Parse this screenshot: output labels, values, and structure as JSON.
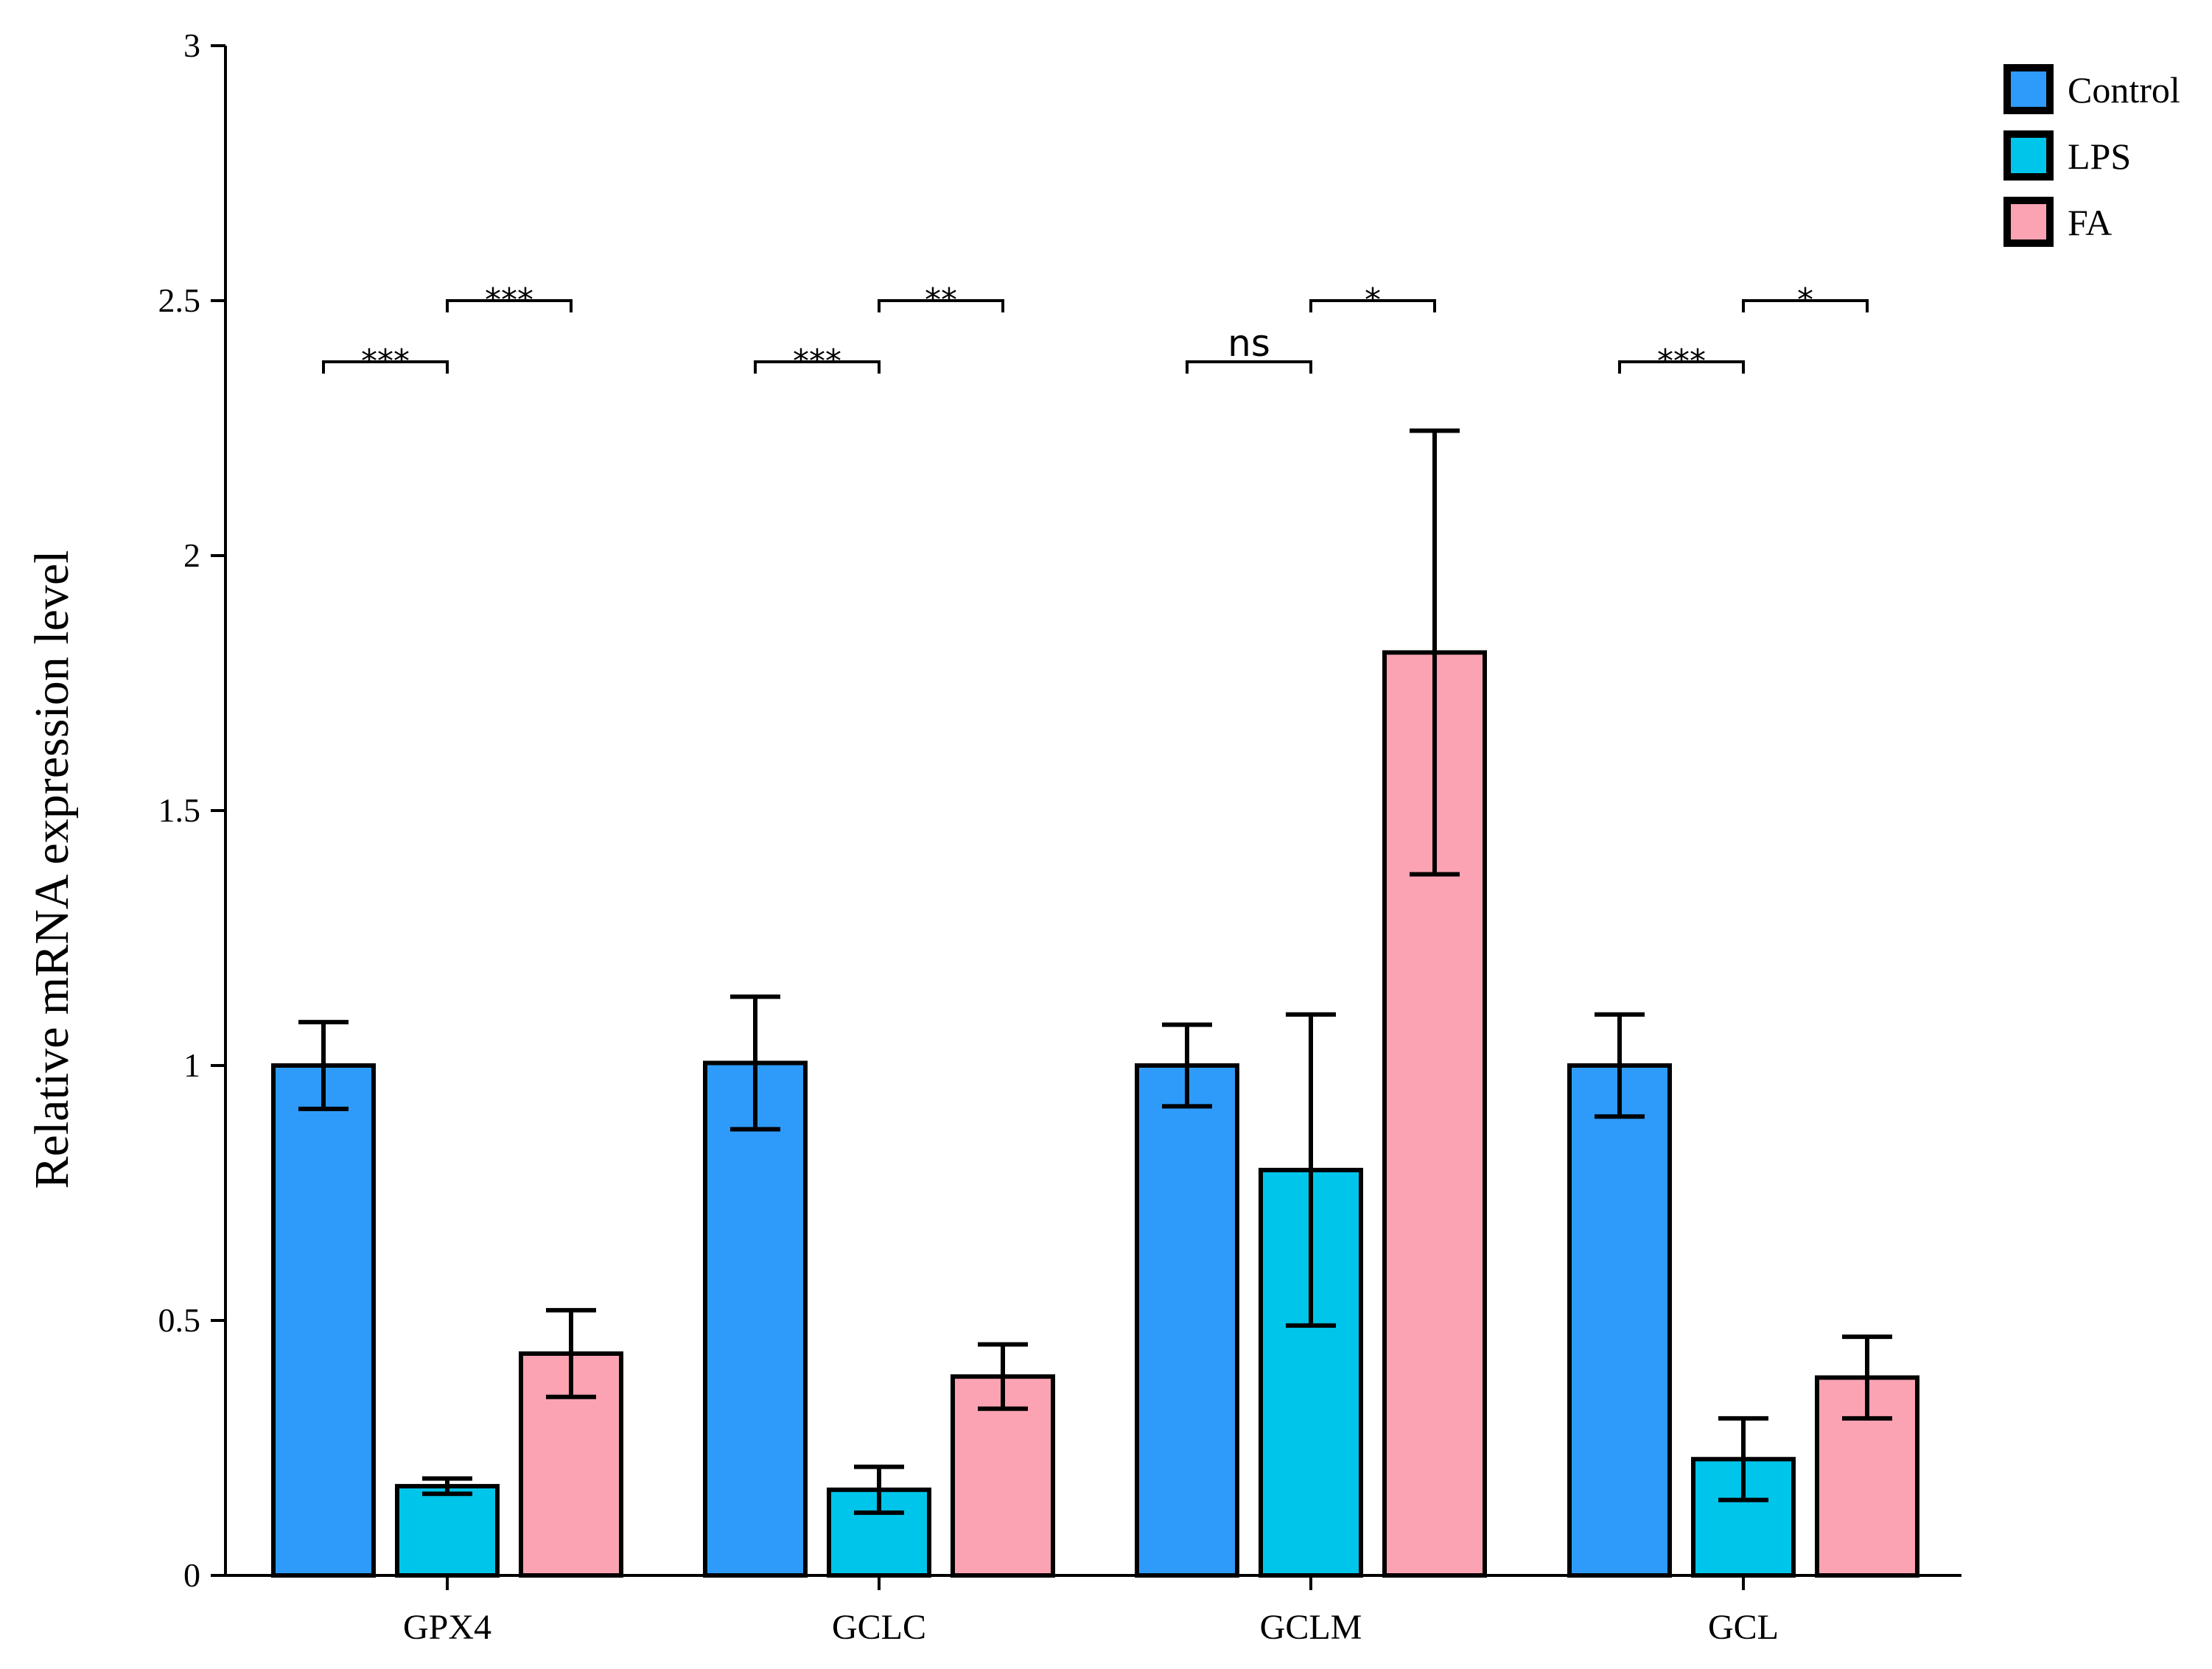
{
  "chart_data": {
    "type": "bar",
    "title": "",
    "xlabel": "",
    "ylabel": "Relative mRNA expression level",
    "ylim": [
      0,
      3
    ],
    "yticks": [
      0,
      0.5,
      1,
      1.5,
      2,
      2.5,
      3
    ],
    "ytick_labels": [
      "0",
      "0.5",
      "1",
      "1.5",
      "2",
      "2.5",
      "3"
    ],
    "categories": [
      "GPX4",
      "GCLC",
      "GCLM",
      "GCL"
    ],
    "series": [
      {
        "name": "Control",
        "color": "#2E9BFA",
        "values": [
          1.0,
          1.005,
          1.0,
          1.0
        ],
        "errors": [
          0.085,
          0.13,
          0.08,
          0.1
        ]
      },
      {
        "name": "LPS",
        "color": "#00C5EA",
        "values": [
          0.175,
          0.168,
          0.795,
          0.228
        ],
        "errors": [
          0.015,
          0.045,
          0.305,
          0.08
        ]
      },
      {
        "name": "FA",
        "color": "#FCA3B3",
        "values": [
          0.435,
          0.39,
          1.81,
          0.388
        ],
        "errors": [
          0.085,
          0.063,
          0.435,
          0.08
        ]
      }
    ],
    "significance": [
      {
        "category": "GPX4",
        "from": "Control",
        "to": "LPS",
        "label": "***",
        "level": 2.38
      },
      {
        "category": "GPX4",
        "from": "LPS",
        "to": "FA",
        "label": "***",
        "level": 2.5
      },
      {
        "category": "GCLC",
        "from": "Control",
        "to": "LPS",
        "label": "***",
        "level": 2.38
      },
      {
        "category": "GCLC",
        "from": "LPS",
        "to": "FA",
        "label": "**",
        "level": 2.5
      },
      {
        "category": "GCLM",
        "from": "Control",
        "to": "LPS",
        "label": "ns",
        "level": 2.38
      },
      {
        "category": "GCLM",
        "from": "LPS",
        "to": "FA",
        "label": "*",
        "level": 2.5
      },
      {
        "category": "GCL",
        "from": "Control",
        "to": "LPS",
        "label": "***",
        "level": 2.38
      },
      {
        "category": "GCL",
        "from": "LPS",
        "to": "FA",
        "label": "*",
        "level": 2.5
      }
    ],
    "legend_position": "top-right",
    "grid": false
  }
}
